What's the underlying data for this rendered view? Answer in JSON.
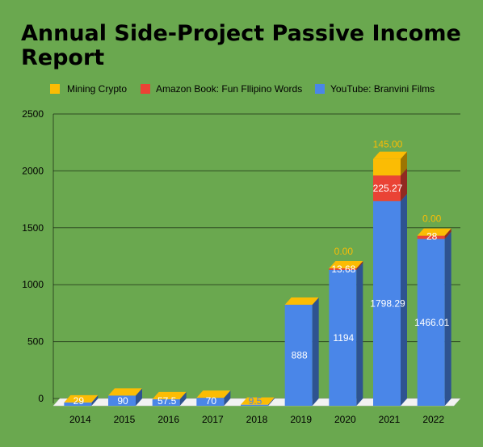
{
  "chart_data": {
    "type": "bar",
    "stacked": true,
    "style": "3d",
    "title_lines": [
      "Annual Side-Project Passive Income",
      "Report"
    ],
    "categories": [
      "2014",
      "2015",
      "2016",
      "2017",
      "2018",
      "2019",
      "2020",
      "2021",
      "2022"
    ],
    "series": [
      {
        "name": "YouTube: Branvini Films",
        "color": "#4a86e8",
        "values": [
          29,
          90,
          57.5,
          70,
          9.5,
          888,
          1194,
          1798.29,
          1466.01
        ],
        "labels": [
          "29",
          "90",
          "57.5",
          "70",
          "9.5",
          "888",
          "1194",
          "1798.29",
          "1466.01"
        ]
      },
      {
        "name": "Amazon Book: Fun Fllipino Words",
        "color": "#ea4335",
        "values": [
          0,
          0,
          0,
          0,
          0,
          0,
          13.68,
          225.27,
          28
        ],
        "labels": [
          "",
          "",
          "",
          "",
          "",
          "",
          "13.68",
          "225.27",
          "28"
        ]
      },
      {
        "name": "Mining Crypto",
        "color": "#fbbc04",
        "values": [
          0,
          0,
          0,
          0,
          0,
          0,
          0,
          145,
          0
        ],
        "labels": [
          "",
          "",
          "",
          "",
          "",
          "",
          "0.00",
          "145.00",
          "0.00"
        ]
      }
    ],
    "legend_order": [
      2,
      1,
      0
    ],
    "yticks": [
      "0",
      "500",
      "1000",
      "1500",
      "2000",
      "2500"
    ],
    "ylim": [
      0,
      2500
    ],
    "grid": true,
    "legend_position": "top"
  }
}
